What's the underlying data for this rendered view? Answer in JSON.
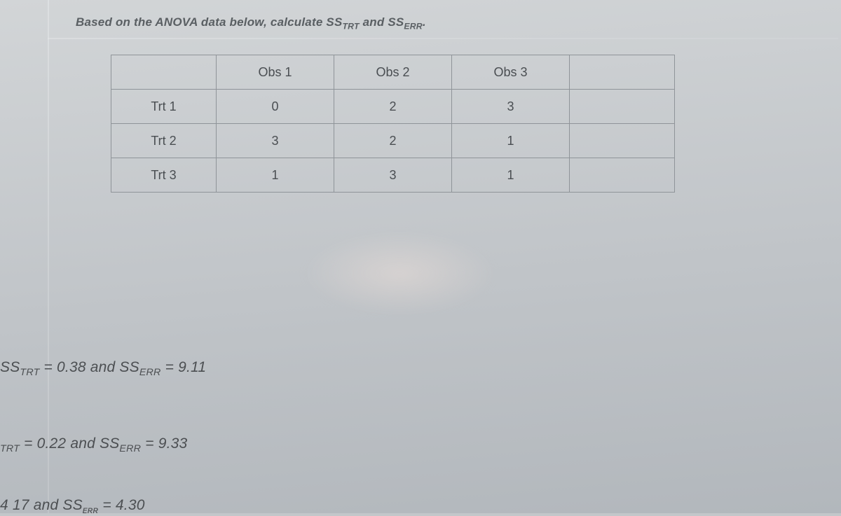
{
  "question": {
    "prefix": "Based on the ANOVA data below, calculate SS",
    "sub1": "TRT",
    "mid": " and SS",
    "sub2": "ERR",
    "suffix": "."
  },
  "table": {
    "col_headers": [
      "",
      "Obs 1",
      "Obs 2",
      "Obs 3",
      ""
    ],
    "rows": [
      {
        "label": "Trt 1",
        "cells": [
          "0",
          "2",
          "3",
          ""
        ]
      },
      {
        "label": "Trt 2",
        "cells": [
          "3",
          "2",
          "1",
          ""
        ]
      },
      {
        "label": "Trt 3",
        "cells": [
          "1",
          "3",
          "1",
          ""
        ]
      }
    ]
  },
  "options": {
    "o1": {
      "a_label": "SS",
      "a_sub": "TRT",
      "a_val": " = 0.38 and ",
      "b_label": "SS",
      "b_sub": "ERR",
      "b_val": " = 9.11"
    },
    "o2": {
      "a_label": "",
      "a_sub": "TRT",
      "a_val": " = 0.22 and ",
      "b_label": "SS",
      "b_sub": "ERR",
      "b_val": " = 9.33"
    },
    "o3": {
      "a_label": "",
      "a_sub": "",
      "a_val": "4 17 and SS",
      "b_label": "",
      "b_sub": "ᴇʀʀ",
      "b_val": " = 4.30"
    }
  }
}
